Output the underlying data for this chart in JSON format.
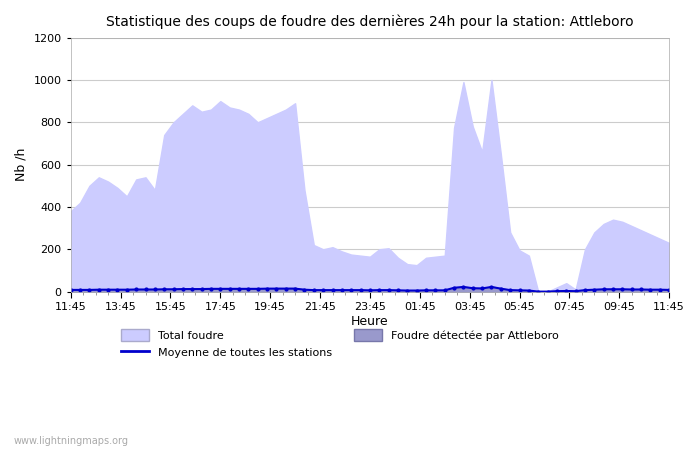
{
  "title": "Statistique des coups de foudre des dernières 24h pour la station: Attleboro",
  "ylabel": "Nb /h",
  "xlabel": "Heure",
  "ylim": [
    0,
    1200
  ],
  "yticks": [
    0,
    200,
    400,
    600,
    800,
    1000,
    1200
  ],
  "x_labels": [
    "11:45",
    "13:45",
    "15:45",
    "17:45",
    "19:45",
    "21:45",
    "23:45",
    "01:45",
    "03:45",
    "05:45",
    "07:45",
    "09:45",
    "11:45"
  ],
  "fill_color_light": "#ccccff",
  "fill_color_dark": "#9999cc",
  "line_color": "#0000cc",
  "background_color": "#ffffff",
  "grid_color": "#cccccc",
  "watermark": "www.lightningmaps.org",
  "total_foudre_label": "Total foudre",
  "moyenne_label": "Moyenne de toutes les stations",
  "detected_label": "Foudre détectée par Attleboro",
  "total_foudre": [
    380,
    420,
    500,
    540,
    520,
    490,
    450,
    530,
    540,
    480,
    740,
    800,
    840,
    880,
    850,
    860,
    900,
    870,
    860,
    840,
    800,
    820,
    840,
    860,
    890,
    480,
    220,
    200,
    210,
    190,
    175,
    170,
    165,
    200,
    205,
    160,
    130,
    125,
    160,
    165,
    170,
    775,
    990,
    780,
    660,
    1000,
    650,
    280,
    195,
    170,
    0,
    0,
    20,
    40,
    10,
    200,
    280,
    320,
    340,
    330,
    310,
    290,
    270,
    250,
    230
  ],
  "detected_foudre": [
    5,
    5,
    5,
    8,
    8,
    8,
    8,
    10,
    10,
    10,
    12,
    12,
    14,
    14,
    14,
    15,
    16,
    15,
    15,
    15,
    15,
    16,
    17,
    17,
    18,
    10,
    8,
    8,
    8,
    8,
    7,
    7,
    7,
    7,
    8,
    7,
    5,
    5,
    6,
    6,
    6,
    20,
    25,
    18,
    16,
    25,
    16,
    8,
    6,
    5,
    0,
    0,
    2,
    3,
    2,
    8,
    10,
    12,
    12,
    12,
    11,
    11,
    10,
    10,
    9
  ],
  "moyenne_line": [
    8,
    8,
    8,
    9,
    9,
    9,
    9,
    10,
    10,
    10,
    11,
    11,
    12,
    12,
    12,
    13,
    13,
    13,
    13,
    13,
    13,
    14,
    14,
    14,
    14,
    9,
    7,
    7,
    7,
    7,
    7,
    7,
    6,
    7,
    7,
    6,
    5,
    5,
    6,
    6,
    6,
    18,
    22,
    16,
    15,
    22,
    14,
    7,
    6,
    5,
    0,
    0,
    2,
    3,
    2,
    7,
    9,
    11,
    11,
    11,
    10,
    10,
    9,
    9,
    8
  ]
}
